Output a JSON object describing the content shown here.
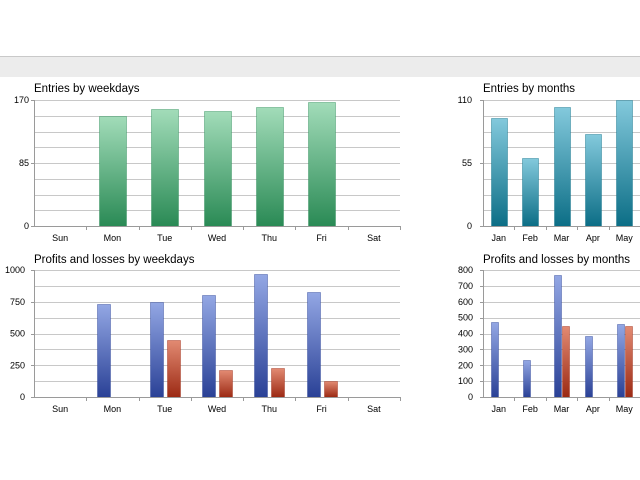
{
  "colors": {
    "entries_weekday": [
      "#a2dcb9",
      "#2a8a55"
    ],
    "entries_month": [
      "#83c9dc",
      "#0c6e86"
    ],
    "profit": [
      "#93a7e4",
      "#2a4196"
    ],
    "loss": [
      "#e28a72",
      "#9c2a14"
    ]
  },
  "chart_data": [
    {
      "type": "bar",
      "title": "Entries by weekdays",
      "categories": [
        "Sun",
        "Mon",
        "Tue",
        "Wed",
        "Thu",
        "Fri",
        "Sat"
      ],
      "series": [
        {
          "name": "Entries",
          "values": [
            0,
            148,
            158,
            155,
            160,
            167,
            0
          ]
        }
      ],
      "yticks": [
        "0",
        "85",
        "170"
      ],
      "ylim": [
        0,
        170
      ],
      "minor_step": 21.25
    },
    {
      "type": "bar",
      "title": "Entries by months",
      "categories": [
        "Jan",
        "Feb",
        "Mar",
        "Apr",
        "May"
      ],
      "series": [
        {
          "name": "Entries",
          "values": [
            94,
            59,
            104,
            80,
            110
          ]
        }
      ],
      "yticks": [
        "0",
        "55",
        "110"
      ],
      "ylim": [
        0,
        110
      ],
      "minor_step": 13.75
    },
    {
      "type": "bar",
      "title": "Profits and losses by weekdays",
      "categories": [
        "Sun",
        "Mon",
        "Tue",
        "Wed",
        "Thu",
        "Fri",
        "Sat"
      ],
      "series": [
        {
          "name": "Profits",
          "values": [
            0,
            730,
            750,
            800,
            965,
            830,
            0
          ]
        },
        {
          "name": "Losses",
          "values": [
            0,
            0,
            450,
            215,
            225,
            125,
            0
          ]
        }
      ],
      "yticks": [
        "0",
        "250",
        "500",
        "750",
        "1000"
      ],
      "ylim": [
        0,
        1000
      ],
      "minor_step": 125
    },
    {
      "type": "bar",
      "title": "Profits and losses by months",
      "categories": [
        "Jan",
        "Feb",
        "Mar",
        "Apr",
        "May"
      ],
      "series": [
        {
          "name": "Profits",
          "values": [
            475,
            235,
            770,
            385,
            460
          ]
        },
        {
          "name": "Losses",
          "values": [
            0,
            0,
            450,
            0,
            445
          ]
        }
      ],
      "yticks": [
        "0",
        "100",
        "200",
        "300",
        "400",
        "500",
        "600",
        "700",
        "800"
      ],
      "ylim": [
        0,
        800
      ],
      "minor_step": 100
    }
  ]
}
